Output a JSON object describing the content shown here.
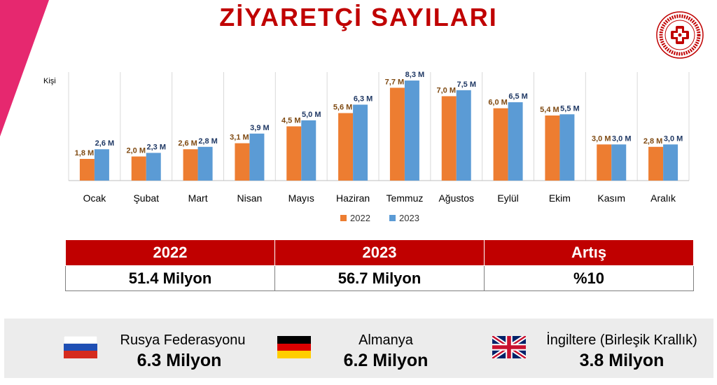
{
  "title": "ZİYARETÇİ SAYILARI",
  "colors": {
    "title": "#c00000",
    "table_header": "#c00000",
    "series_2022": "#ed7d31",
    "series_2023": "#5b9bd5",
    "label_2022": "#7f4a12",
    "label_2023": "#1f3864",
    "stripe": "#e6286f"
  },
  "chart_data": {
    "type": "bar",
    "ylabel": "Kişi",
    "ylim": [
      0,
      9
    ],
    "grid": "vertical",
    "legend_position": "bottom",
    "categories": [
      "Ocak",
      "Şubat",
      "Mart",
      "Nisan",
      "Mayıs",
      "Haziran",
      "Temmuz",
      "Ağustos",
      "Eylül",
      "Ekim",
      "Kasım",
      "Aralık"
    ],
    "series": [
      {
        "name": "2022",
        "values": [
          1.8,
          2.0,
          2.6,
          3.1,
          4.5,
          5.6,
          7.7,
          7.0,
          6.0,
          5.4,
          3.0,
          2.8
        ],
        "labels": [
          "1,8 M",
          "2,0 M",
          "2,6 M",
          "3,1 M",
          "4,5 M",
          "5,6 M",
          "7,7 M",
          "7,0 M",
          "6,0 M",
          "5,4 M",
          "3,0 M",
          "2,8 M"
        ]
      },
      {
        "name": "2023",
        "values": [
          2.6,
          2.3,
          2.8,
          3.9,
          5.0,
          6.3,
          8.3,
          7.5,
          6.5,
          5.5,
          3.0,
          3.0
        ],
        "labels": [
          "2,6 M",
          "2,3 M",
          "2,8 M",
          "3,9 M",
          "5,0 M",
          "6,3 M",
          "8,3 M",
          "7,5 M",
          "6,5 M",
          "5,5 M",
          "3,0 M",
          "3,0 M"
        ]
      }
    ]
  },
  "summary_table": {
    "headers": [
      "2022",
      "2023",
      "Artış"
    ],
    "values": [
      "51.4 Milyon",
      "56.7 Milyon",
      "%10"
    ]
  },
  "countries": [
    {
      "name": "Rusya Federasyonu",
      "value": "6.3 Milyon",
      "flag_icon": "russia-flag-icon"
    },
    {
      "name": "Almanya",
      "value": "6.2 Milyon",
      "flag_icon": "germany-flag-icon"
    },
    {
      "name": "İngiltere (Birleşik Krallık)",
      "value": "3.8 Milyon",
      "flag_icon": "uk-flag-icon"
    }
  ]
}
